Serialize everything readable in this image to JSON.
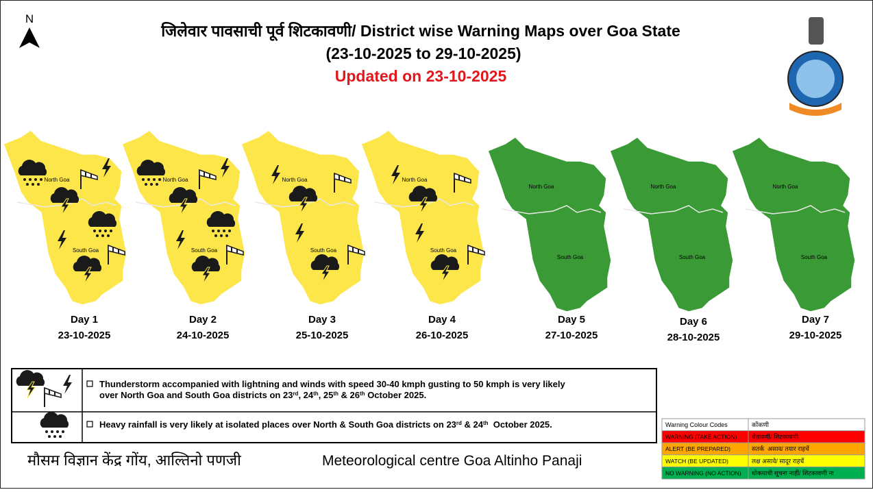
{
  "header": {
    "north": "N",
    "title": "जिलेवार पावसाची पूर्व शिटकावणी/ District wise Warning Maps over Goa State",
    "date_range": "(23-10-2025 to 29-10-2025)",
    "updated": "Updated on 23-10-2025"
  },
  "maps": [
    {
      "day": "Day 1",
      "date": "23-10-2025",
      "color": "#fce64a",
      "north_label": "North Goa",
      "south_label": "South Goa"
    },
    {
      "day": "Day 2",
      "date": "24-10-2025",
      "color": "#fce64a",
      "north_label": "North Goa",
      "south_label": "South Goa"
    },
    {
      "day": "Day 3",
      "date": "25-10-2025",
      "color": "#fce64a",
      "north_label": "North Goa",
      "south_label": "South Goa"
    },
    {
      "day": "Day 4",
      "date": "26-10-2025",
      "color": "#fce64a",
      "north_label": "North Goa",
      "south_label": "South Goa"
    },
    {
      "day": "Day 5",
      "date": "27-10-2025",
      "color": "#3a9a36",
      "north_label": "North Goa",
      "south_label": "South Goa"
    },
    {
      "day": "Day 6",
      "date": "28-10-2025",
      "color": "#3a9a36",
      "north_label": "North Goa",
      "south_label": "South Goa"
    },
    {
      "day": "Day 7",
      "date": "29-10-2025",
      "color": "#3a9a36",
      "north_label": "North Goa",
      "south_label": "South Goa"
    }
  ],
  "legend": [
    {
      "lines": [
        [
          "Thunderstorm accompanied with lightning and winds with speed 30-40 kmph gusting to 50 kmph is very likely"
        ],
        [
          "over North Goa and South Goa districts on 23",
          "rd",
          ", 24",
          "th",
          ", 25",
          "th",
          " & 26",
          "th",
          " October 2025."
        ]
      ]
    },
    {
      "lines": [
        [
          "Heavy rainfall is very likely at isolated places over North & South Goa districts on 23",
          "rd",
          " & 24",
          "th",
          "  October 2025."
        ]
      ]
    }
  ],
  "footer": {
    "hindi": "मौसम विज्ञान केंद्र गोंय, आल्तिनो पणजी",
    "english": "Meteorological centre Goa Altinho Panaji"
  },
  "colour_codes": {
    "header": [
      "Warning Colour Codes",
      "कोंकणी"
    ],
    "rows": [
      {
        "color": "#ff0000",
        "label": "WARNING (TAKE ACTION)",
        "konkani": "चेतावणी/ शिटकावणी"
      },
      {
        "color": "#ffa500",
        "label": "ALERT (BE PREPARED)",
        "konkani": "सतर्क  असाव/ तयार राहचें"
      },
      {
        "color": "#ffff00",
        "label": "WATCH (BE UPDATED)",
        "konkani": "लक्ष असावे/ सादूर राहचें"
      },
      {
        "color": "#00b050",
        "label": "NO WARNING (NO ACTION)",
        "konkani": "धोकयाची सूचना नाहीं/ शिटकावणी ना"
      }
    ]
  }
}
